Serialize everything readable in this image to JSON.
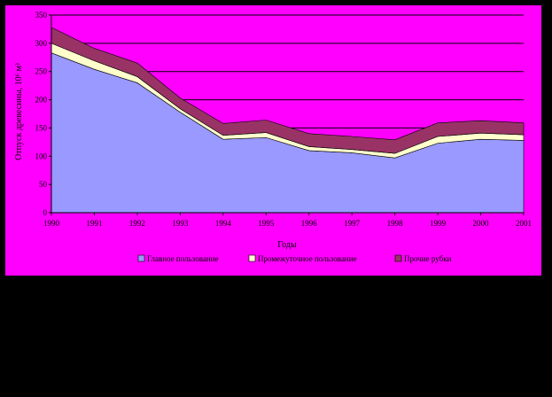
{
  "colors": {
    "background": "#000000",
    "plot_area": "#ff00ff",
    "main_use": "#9999ff",
    "intermediate_use": "#ffffcc",
    "other_felling": "#993366",
    "gridline": "#000000"
  },
  "chart_data": {
    "type": "area",
    "stacked": true,
    "title": "",
    "xlabel": "Годы",
    "ylabel": "Отпуск древесины, 10⁶ м³",
    "x": [
      "1990",
      "1991",
      "1992",
      "1993",
      "1994",
      "1995",
      "1996",
      "1997",
      "1998",
      "1999",
      "2000",
      "2001"
    ],
    "ylim": [
      0,
      350
    ],
    "yticks": [
      "0",
      "50",
      "100",
      "150",
      "200",
      "250",
      "300",
      "350"
    ],
    "grid": true,
    "legend_position": "bottom",
    "series": [
      {
        "name": "Главное пользование",
        "values": [
          283,
          254,
          230,
          178,
          130,
          133,
          110,
          106,
          97,
          123,
          130,
          128
        ]
      },
      {
        "name": "Промежуточное пользование",
        "values": [
          17,
          15,
          11,
          6,
          7,
          9,
          7,
          6,
          8,
          12,
          11,
          10
        ]
      },
      {
        "name": "Прочие рубки",
        "values": [
          28,
          22,
          24,
          19,
          21,
          22,
          23,
          23,
          24,
          24,
          22,
          21
        ]
      }
    ]
  }
}
